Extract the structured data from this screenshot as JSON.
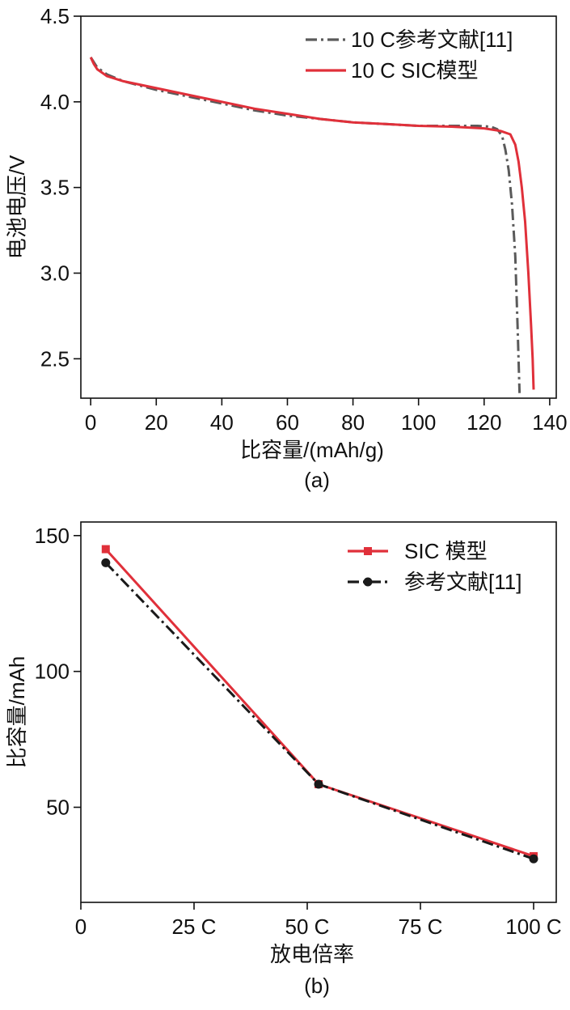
{
  "chart_data": [
    {
      "type": "line",
      "panel_label": "(a)",
      "xlabel": "比容量/(mAh/g)",
      "ylabel": "电池电压/V",
      "xlim": [
        -3,
        142
      ],
      "ylim": [
        2.27,
        4.5
      ],
      "x_ticks": [
        0,
        20,
        40,
        60,
        80,
        100,
        120,
        140
      ],
      "x_tick_labels": [
        "0",
        "20",
        "40",
        "60",
        "80",
        "100",
        "120",
        "140"
      ],
      "y_ticks": [
        2.5,
        3.0,
        3.5,
        4.0,
        4.5
      ],
      "y_tick_labels": [
        "2.5",
        "3.0",
        "3.5",
        "4.0",
        "4.5"
      ],
      "grid": false,
      "legend_position": "top-right",
      "series": [
        {
          "name": "10 C参考文献[11]",
          "color": "#5a5a5a",
          "line_style": "dashdot",
          "points": [
            [
              0,
              4.26
            ],
            [
              1,
              4.23
            ],
            [
              2,
              4.2
            ],
            [
              5,
              4.16
            ],
            [
              10,
              4.12
            ],
            [
              20,
              4.07
            ],
            [
              30,
              4.03
            ],
            [
              40,
              3.99
            ],
            [
              50,
              3.95
            ],
            [
              60,
              3.92
            ],
            [
              70,
              3.9
            ],
            [
              80,
              3.88
            ],
            [
              90,
              3.87
            ],
            [
              100,
              3.86
            ],
            [
              110,
              3.86
            ],
            [
              118,
              3.86
            ],
            [
              122,
              3.855
            ],
            [
              124,
              3.84
            ],
            [
              125.5,
              3.8
            ],
            [
              126.5,
              3.72
            ],
            [
              127.5,
              3.6
            ],
            [
              128.5,
              3.4
            ],
            [
              129.5,
              3.1
            ],
            [
              130.2,
              2.7
            ],
            [
              130.8,
              2.3
            ]
          ]
        },
        {
          "name": "10 C SIC模型",
          "color": "#e0303a",
          "line_style": "solid",
          "points": [
            [
              0,
              4.26
            ],
            [
              1,
              4.22
            ],
            [
              2,
              4.19
            ],
            [
              5,
              4.15
            ],
            [
              10,
              4.12
            ],
            [
              20,
              4.08
            ],
            [
              30,
              4.04
            ],
            [
              40,
              4.0
            ],
            [
              50,
              3.96
            ],
            [
              60,
              3.93
            ],
            [
              70,
              3.9
            ],
            [
              80,
              3.88
            ],
            [
              90,
              3.87
            ],
            [
              100,
              3.86
            ],
            [
              110,
              3.855
            ],
            [
              120,
              3.845
            ],
            [
              125,
              3.83
            ],
            [
              128,
              3.81
            ],
            [
              129.5,
              3.75
            ],
            [
              130.5,
              3.65
            ],
            [
              131.5,
              3.5
            ],
            [
              132.5,
              3.3
            ],
            [
              133.5,
              3.0
            ],
            [
              134.3,
              2.7
            ],
            [
              134.8,
              2.5
            ],
            [
              135.1,
              2.32
            ]
          ]
        }
      ]
    },
    {
      "type": "line",
      "panel_label": "(b)",
      "xlabel": "放电倍率",
      "ylabel": "比容量/mAh",
      "xlim": [
        0,
        105
      ],
      "ylim": [
        15,
        155
      ],
      "x_ticks": [
        0,
        25,
        50,
        75,
        100
      ],
      "x_tick_labels": [
        "0",
        "25 C",
        "50 C",
        "75 C",
        "100 C"
      ],
      "y_ticks": [
        50,
        100,
        150
      ],
      "y_tick_labels": [
        "50",
        "100",
        "150"
      ],
      "grid": false,
      "legend_position": "top-right",
      "series": [
        {
          "name": "SIC 模型",
          "color": "#e0303a",
          "line_style": "solid",
          "marker": "square",
          "points": [
            [
              5.5,
              145
            ],
            [
              52.5,
              58.5
            ],
            [
              100,
              32
            ]
          ]
        },
        {
          "name": "参考文献[11]",
          "color": "#1a1a1a",
          "line_style": "dashdot",
          "marker": "circle",
          "points": [
            [
              5.5,
              140
            ],
            [
              52.5,
              58.5
            ],
            [
              100,
              31
            ]
          ]
        }
      ]
    }
  ]
}
